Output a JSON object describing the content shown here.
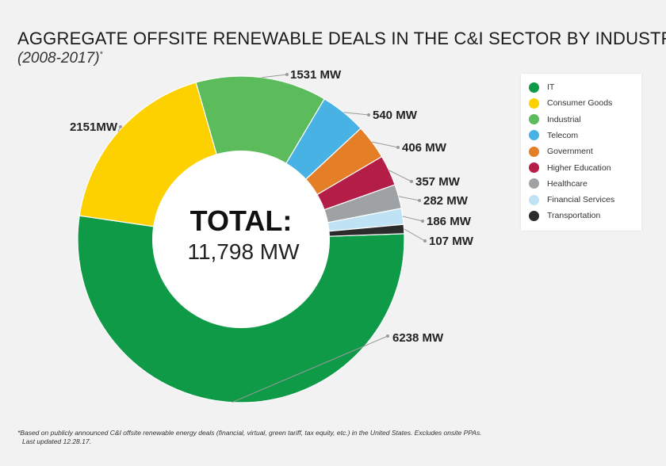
{
  "title": "AGGREGATE OFFSITE RENEWABLE DEALS IN THE C&I SECTOR BY INDUSTRY",
  "subtitle": "(2008-2017)",
  "subtitle_mark": "*",
  "center": {
    "label": "TOTAL:",
    "value": "11,798 MW"
  },
  "footnote": {
    "text": "*Based on publicly announced C&I offsite renewable energy deals (financial, virtual, green tariff, tax equity, etc.) in the United States. Excludes onsite PPAs.",
    "updated": "Last updated 12.28.17."
  },
  "chart_data": {
    "type": "pie",
    "donut": true,
    "total": 11798,
    "unit": "MW",
    "legend_position": "right",
    "series": [
      {
        "name": "IT",
        "value": 6238,
        "label": "6238 MW",
        "color": "#0f9a47"
      },
      {
        "name": "Consumer Goods",
        "value": 2151,
        "label": "2151MW",
        "color": "#fdd000"
      },
      {
        "name": "Industrial",
        "value": 1531,
        "label": "1531 MW",
        "color": "#5cbb5a"
      },
      {
        "name": "Telecom",
        "value": 540,
        "label": "540 MW",
        "color": "#47b2e3"
      },
      {
        "name": "Government",
        "value": 406,
        "label": "406 MW",
        "color": "#e47e27"
      },
      {
        "name": "Higher Education",
        "value": 357,
        "label": "357 MW",
        "color": "#b41d46"
      },
      {
        "name": "Healthcare",
        "value": 282,
        "label": "282 MW",
        "color": "#9fa2a5"
      },
      {
        "name": "Financial Services",
        "value": 186,
        "label": "186 MW",
        "color": "#bfe2f5"
      },
      {
        "name": "Transportation",
        "value": 107,
        "label": "107 MW",
        "color": "#2b2b2b"
      }
    ]
  }
}
